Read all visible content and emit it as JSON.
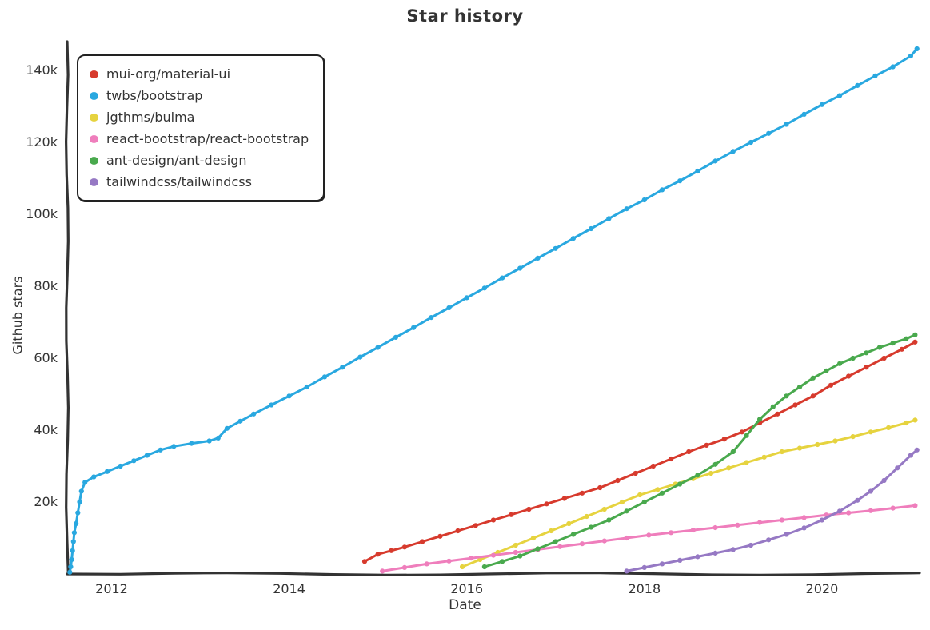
{
  "page": {
    "title": "Star history"
  },
  "chart_data": {
    "type": "line",
    "title": "Star history",
    "xlabel": "Date",
    "ylabel": "Github stars",
    "grid": false,
    "legend_position": "top-left",
    "axis_color": "#333333",
    "xlim": [
      2011.5,
      2021.1
    ],
    "ylim": [
      0,
      148000
    ],
    "xticks": [
      {
        "value": 2012,
        "label": "2012"
      },
      {
        "value": 2014,
        "label": "2014"
      },
      {
        "value": 2016,
        "label": "2016"
      },
      {
        "value": 2018,
        "label": "2018"
      },
      {
        "value": 2020,
        "label": "2020"
      }
    ],
    "yticks": [
      {
        "value": 20000,
        "label": "20k"
      },
      {
        "value": 40000,
        "label": "40k"
      },
      {
        "value": 60000,
        "label": "60k"
      },
      {
        "value": 80000,
        "label": "80k"
      },
      {
        "value": 100000,
        "label": "100k"
      },
      {
        "value": 120000,
        "label": "120k"
      },
      {
        "value": 140000,
        "label": "140k"
      }
    ],
    "series": [
      {
        "name": "mui-org/material-ui",
        "color": "#d73a2d",
        "points": [
          [
            2014.85,
            3500
          ],
          [
            2015.0,
            5500
          ],
          [
            2015.15,
            6500
          ],
          [
            2015.3,
            7500
          ],
          [
            2015.5,
            9000
          ],
          [
            2015.7,
            10500
          ],
          [
            2015.9,
            12000
          ],
          [
            2016.1,
            13500
          ],
          [
            2016.3,
            15000
          ],
          [
            2016.5,
            16500
          ],
          [
            2016.7,
            18000
          ],
          [
            2016.9,
            19500
          ],
          [
            2017.1,
            21000
          ],
          [
            2017.3,
            22500
          ],
          [
            2017.5,
            24000
          ],
          [
            2017.7,
            26000
          ],
          [
            2017.9,
            28000
          ],
          [
            2018.1,
            30000
          ],
          [
            2018.3,
            32000
          ],
          [
            2018.5,
            34000
          ],
          [
            2018.7,
            35800
          ],
          [
            2018.9,
            37500
          ],
          [
            2019.1,
            39500
          ],
          [
            2019.3,
            42000
          ],
          [
            2019.5,
            44500
          ],
          [
            2019.7,
            47000
          ],
          [
            2019.9,
            49500
          ],
          [
            2020.1,
            52500
          ],
          [
            2020.3,
            55000
          ],
          [
            2020.5,
            57500
          ],
          [
            2020.7,
            60000
          ],
          [
            2020.9,
            62500
          ],
          [
            2021.05,
            64500
          ]
        ]
      },
      {
        "name": "twbs/bootstrap",
        "color": "#29a8e0",
        "points": [
          [
            2011.53,
            500
          ],
          [
            2011.54,
            2000
          ],
          [
            2011.55,
            4000
          ],
          [
            2011.56,
            6500
          ],
          [
            2011.57,
            9000
          ],
          [
            2011.58,
            11500
          ],
          [
            2011.6,
            14000
          ],
          [
            2011.62,
            17000
          ],
          [
            2011.64,
            20000
          ],
          [
            2011.66,
            23000
          ],
          [
            2011.7,
            25500
          ],
          [
            2011.8,
            27000
          ],
          [
            2011.95,
            28500
          ],
          [
            2012.1,
            30000
          ],
          [
            2012.25,
            31500
          ],
          [
            2012.4,
            33000
          ],
          [
            2012.55,
            34500
          ],
          [
            2012.7,
            35500
          ],
          [
            2012.9,
            36300
          ],
          [
            2013.1,
            37000
          ],
          [
            2013.2,
            37800
          ],
          [
            2013.3,
            40500
          ],
          [
            2013.45,
            42500
          ],
          [
            2013.6,
            44500
          ],
          [
            2013.8,
            47000
          ],
          [
            2014.0,
            49500
          ],
          [
            2014.2,
            52000
          ],
          [
            2014.4,
            54800
          ],
          [
            2014.6,
            57500
          ],
          [
            2014.8,
            60300
          ],
          [
            2015.0,
            63000
          ],
          [
            2015.2,
            65800
          ],
          [
            2015.4,
            68500
          ],
          [
            2015.6,
            71300
          ],
          [
            2015.8,
            74000
          ],
          [
            2016.0,
            76800
          ],
          [
            2016.2,
            79500
          ],
          [
            2016.4,
            82300
          ],
          [
            2016.6,
            85000
          ],
          [
            2016.8,
            87800
          ],
          [
            2017.0,
            90500
          ],
          [
            2017.2,
            93300
          ],
          [
            2017.4,
            96000
          ],
          [
            2017.6,
            98800
          ],
          [
            2017.8,
            101500
          ],
          [
            2018.0,
            104000
          ],
          [
            2018.2,
            106800
          ],
          [
            2018.4,
            109300
          ],
          [
            2018.6,
            112000
          ],
          [
            2018.8,
            114800
          ],
          [
            2019.0,
            117500
          ],
          [
            2019.2,
            120000
          ],
          [
            2019.4,
            122500
          ],
          [
            2019.6,
            125000
          ],
          [
            2019.8,
            127800
          ],
          [
            2020.0,
            130500
          ],
          [
            2020.2,
            133000
          ],
          [
            2020.4,
            135800
          ],
          [
            2020.6,
            138500
          ],
          [
            2020.8,
            141000
          ],
          [
            2021.0,
            144000
          ],
          [
            2021.07,
            146000
          ]
        ]
      },
      {
        "name": "jgthms/bulma",
        "color": "#e6d33f",
        "points": [
          [
            2015.95,
            2000
          ],
          [
            2016.15,
            4000
          ],
          [
            2016.35,
            6000
          ],
          [
            2016.55,
            8000
          ],
          [
            2016.75,
            10000
          ],
          [
            2016.95,
            12000
          ],
          [
            2017.15,
            14000
          ],
          [
            2017.35,
            16000
          ],
          [
            2017.55,
            18000
          ],
          [
            2017.75,
            20000
          ],
          [
            2017.95,
            22000
          ],
          [
            2018.15,
            23500
          ],
          [
            2018.35,
            25000
          ],
          [
            2018.55,
            26500
          ],
          [
            2018.75,
            28000
          ],
          [
            2018.95,
            29500
          ],
          [
            2019.15,
            31000
          ],
          [
            2019.35,
            32500
          ],
          [
            2019.55,
            34000
          ],
          [
            2019.75,
            35000
          ],
          [
            2019.95,
            36000
          ],
          [
            2020.15,
            37000
          ],
          [
            2020.35,
            38200
          ],
          [
            2020.55,
            39500
          ],
          [
            2020.75,
            40700
          ],
          [
            2020.95,
            42000
          ],
          [
            2021.05,
            42800
          ]
        ]
      },
      {
        "name": "react-bootstrap/react-bootstrap",
        "color": "#ef7ebc",
        "points": [
          [
            2015.05,
            800
          ],
          [
            2015.3,
            1800
          ],
          [
            2015.55,
            2800
          ],
          [
            2015.8,
            3600
          ],
          [
            2016.05,
            4400
          ],
          [
            2016.3,
            5200
          ],
          [
            2016.55,
            6000
          ],
          [
            2016.8,
            6800
          ],
          [
            2017.05,
            7600
          ],
          [
            2017.3,
            8400
          ],
          [
            2017.55,
            9200
          ],
          [
            2017.8,
            10000
          ],
          [
            2018.05,
            10800
          ],
          [
            2018.3,
            11500
          ],
          [
            2018.55,
            12200
          ],
          [
            2018.8,
            12900
          ],
          [
            2019.05,
            13600
          ],
          [
            2019.3,
            14300
          ],
          [
            2019.55,
            15000
          ],
          [
            2019.8,
            15700
          ],
          [
            2020.05,
            16400
          ],
          [
            2020.3,
            17000
          ],
          [
            2020.55,
            17600
          ],
          [
            2020.8,
            18300
          ],
          [
            2021.05,
            19000
          ]
        ]
      },
      {
        "name": "ant-design/ant-design",
        "color": "#49a94d",
        "points": [
          [
            2016.2,
            2000
          ],
          [
            2016.4,
            3500
          ],
          [
            2016.6,
            5000
          ],
          [
            2016.8,
            7000
          ],
          [
            2017.0,
            9000
          ],
          [
            2017.2,
            11000
          ],
          [
            2017.4,
            13000
          ],
          [
            2017.6,
            15000
          ],
          [
            2017.8,
            17500
          ],
          [
            2018.0,
            20000
          ],
          [
            2018.2,
            22500
          ],
          [
            2018.4,
            25000
          ],
          [
            2018.6,
            27500
          ],
          [
            2018.8,
            30500
          ],
          [
            2019.0,
            34000
          ],
          [
            2019.15,
            38500
          ],
          [
            2019.3,
            43000
          ],
          [
            2019.45,
            46500
          ],
          [
            2019.6,
            49500
          ],
          [
            2019.75,
            52000
          ],
          [
            2019.9,
            54500
          ],
          [
            2020.05,
            56500
          ],
          [
            2020.2,
            58500
          ],
          [
            2020.35,
            60000
          ],
          [
            2020.5,
            61500
          ],
          [
            2020.65,
            63000
          ],
          [
            2020.8,
            64200
          ],
          [
            2020.95,
            65400
          ],
          [
            2021.05,
            66500
          ]
        ]
      },
      {
        "name": "tailwindcss/tailwindcss",
        "color": "#9679c4",
        "points": [
          [
            2017.8,
            800
          ],
          [
            2018.0,
            1800
          ],
          [
            2018.2,
            2800
          ],
          [
            2018.4,
            3800
          ],
          [
            2018.6,
            4800
          ],
          [
            2018.8,
            5800
          ],
          [
            2019.0,
            6800
          ],
          [
            2019.2,
            8000
          ],
          [
            2019.4,
            9500
          ],
          [
            2019.6,
            11000
          ],
          [
            2019.8,
            12800
          ],
          [
            2020.0,
            15000
          ],
          [
            2020.2,
            17500
          ],
          [
            2020.4,
            20500
          ],
          [
            2020.55,
            23000
          ],
          [
            2020.7,
            26000
          ],
          [
            2020.85,
            29500
          ],
          [
            2021.0,
            33000
          ],
          [
            2021.07,
            34500
          ]
        ]
      }
    ]
  }
}
